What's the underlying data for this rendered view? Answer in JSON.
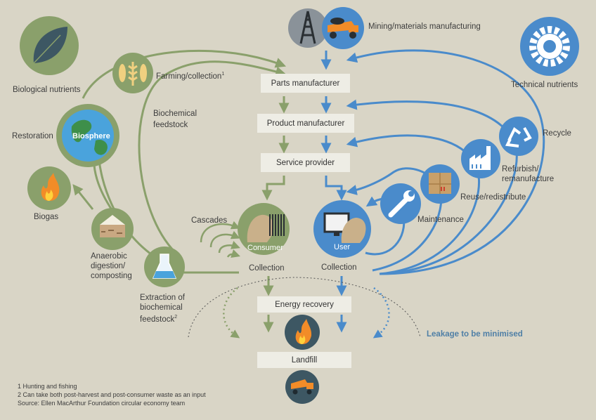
{
  "colors": {
    "background": "#d9d5c6",
    "green": "#8aa06b",
    "dark_green": "#6a8050",
    "blue": "#4a8bcb",
    "dark_slate": "#3d5763",
    "box": "#eeede5",
    "fire_orange": "#f28c28"
  },
  "flow_boxes": {
    "parts": "Parts manufacturer",
    "product": "Product manufacturer",
    "service": "Service provider",
    "energy": "Energy recovery",
    "landfill": "Landfill"
  },
  "labels": {
    "mining": "Mining/materials manufacturing",
    "biological_nutrients": "Biological nutrients",
    "technical_nutrients": "Technical nutrients",
    "farming": "Farming/collection",
    "farming_sup": "1",
    "biochemical_feedstock_line1": "Biochemical",
    "biochemical_feedstock_line2": "feedstock",
    "restoration": "Restoration",
    "biosphere": "Biosphere",
    "biogas": "Biogas",
    "cascades": "Cascades",
    "consumer": "Consumer",
    "user": "User",
    "collection_left": "Collection",
    "collection_right": "Collection",
    "anaerobic_line1": "Anaerobic",
    "anaerobic_line2": "digestion/",
    "anaerobic_line3": "composting",
    "extraction_line1": "Extraction of",
    "extraction_line2": "biochemical",
    "extraction_line3": "feedstock",
    "extraction_sup": "2",
    "maintenance": "Maintenance",
    "reuse": "Reuse/redistribute",
    "refurbish_line1": "Refurbish/",
    "refurbish_line2": "remanufacture",
    "recycle": "Recycle",
    "leakage": "Leakage to be minimised"
  },
  "icons": {
    "leaf": "leaf-icon",
    "wheat_fish": "wheat-fish-icon",
    "globe": "globe-icon",
    "flame": "flame-icon",
    "soil": "soil-layers-icon",
    "flask": "flask-icon",
    "oil_rig": "oil-rig-icon",
    "truck": "truck-icon",
    "gear": "gear-icon",
    "recycle": "recycle-icon",
    "factory": "factory-icon",
    "boxes": "boxes-icon",
    "wrench": "wrench-icon",
    "consumer": "consumer-head-icon",
    "user": "user-computer-icon",
    "landfill_truck": "dump-truck-icon"
  },
  "footnotes": {
    "note1": "1 Hunting and fishing",
    "note2": "2 Can take both post-harvest and post-consumer waste as an input",
    "source": "Source: Ellen MacArthur Foundation circular economy team"
  }
}
